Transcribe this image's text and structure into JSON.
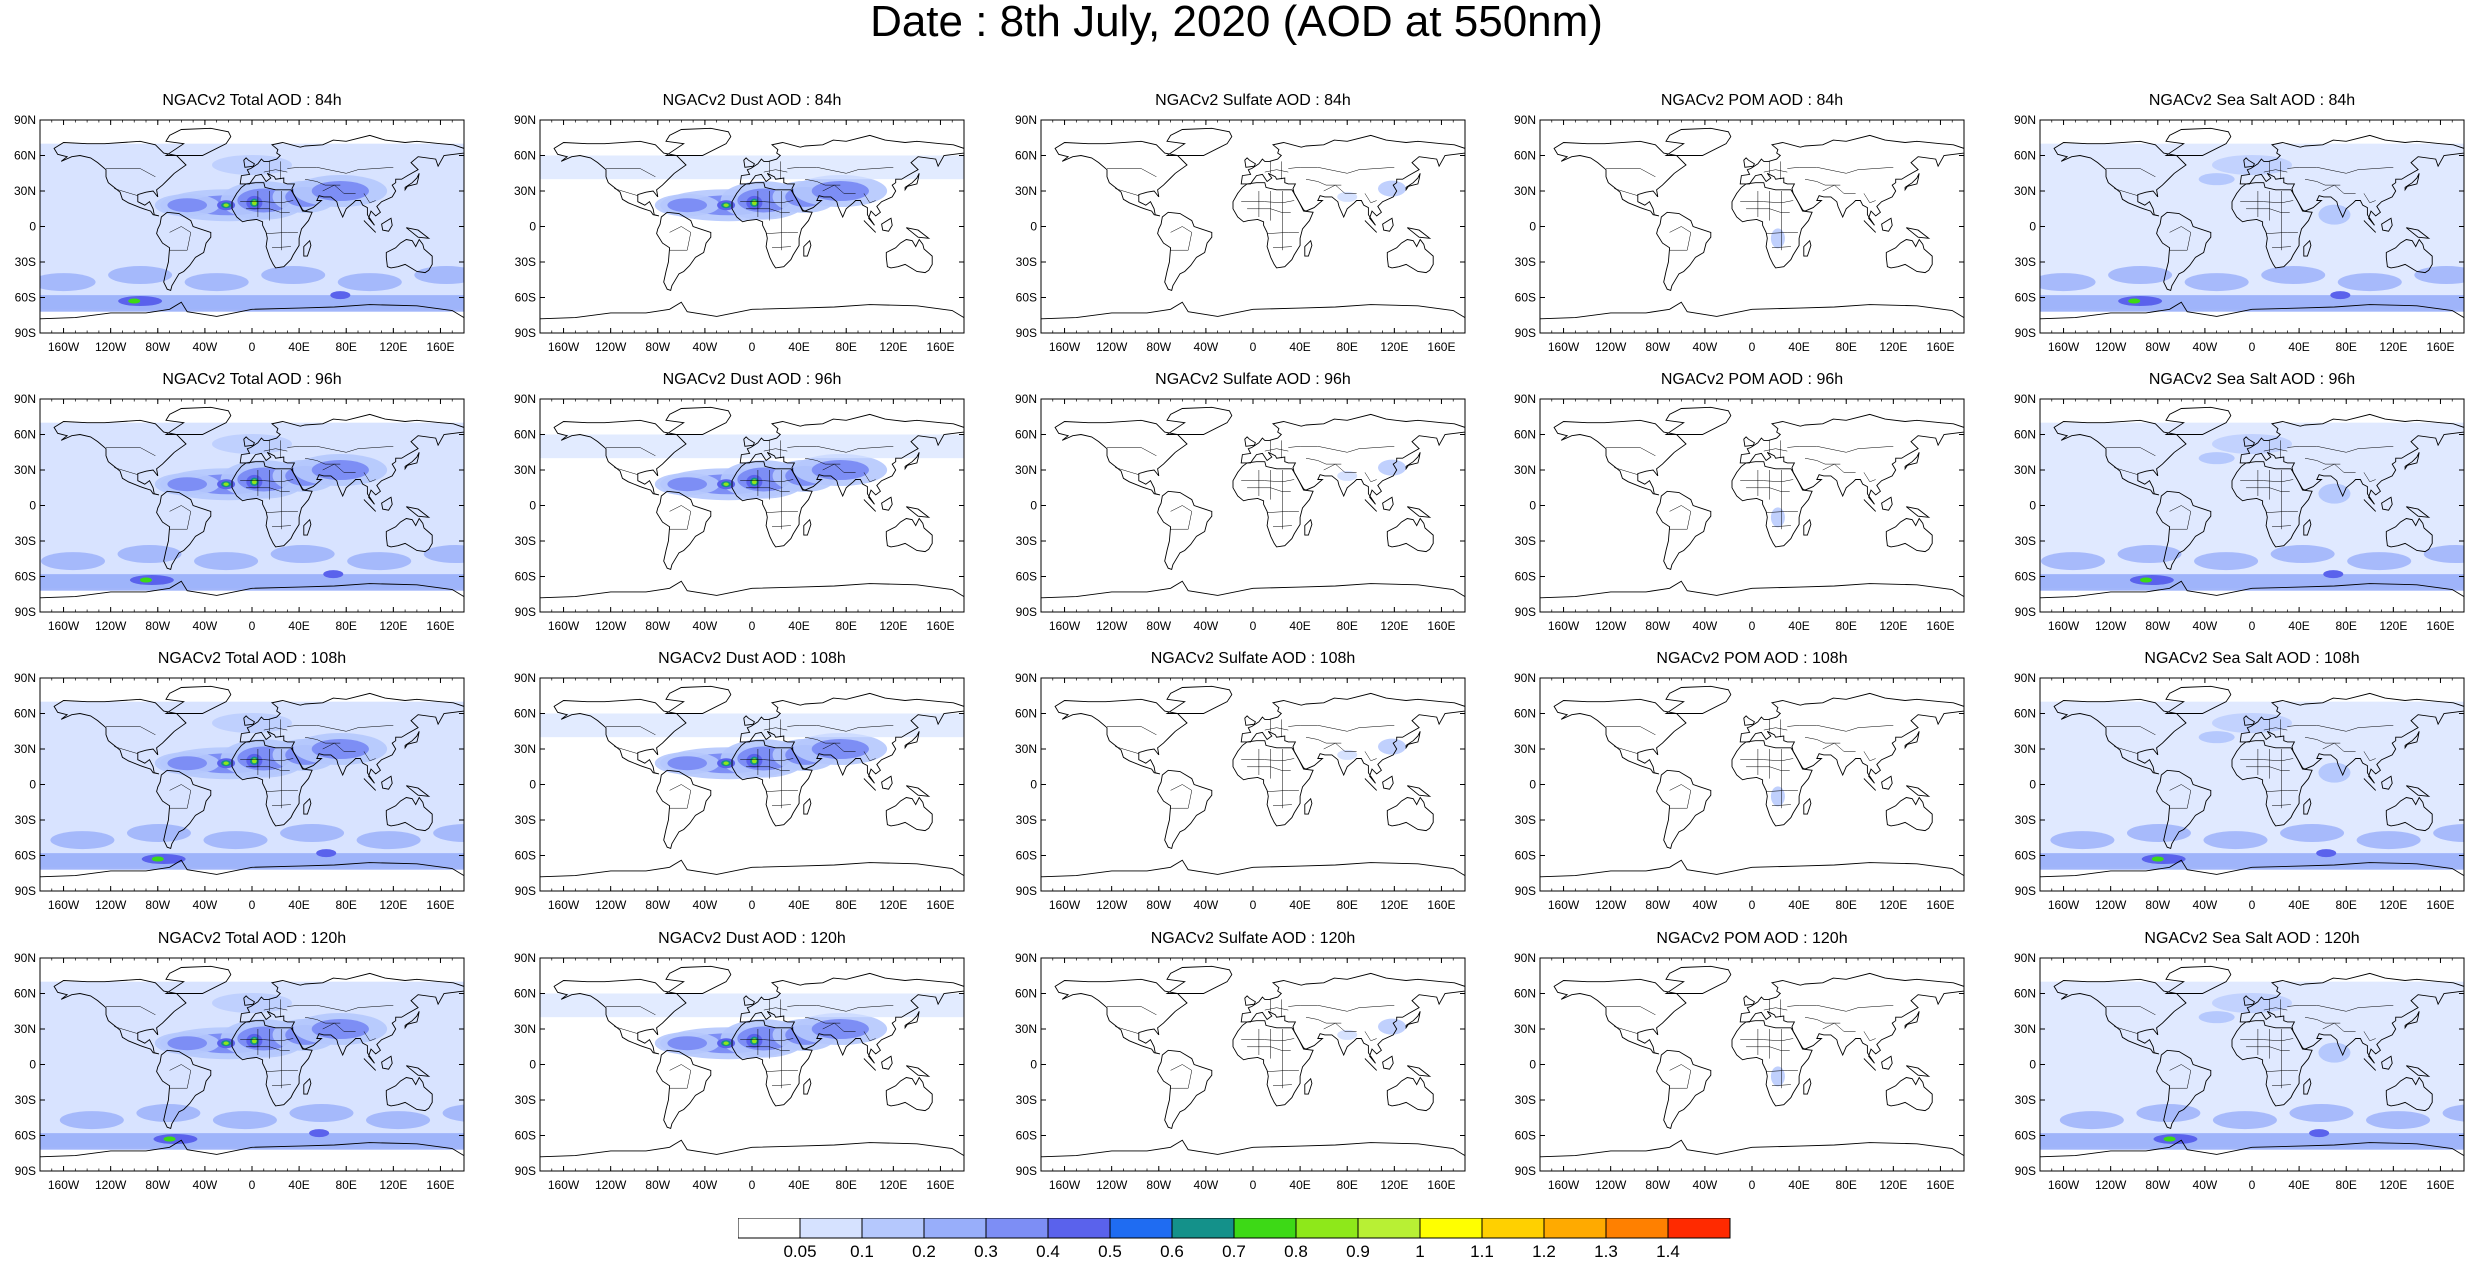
{
  "title": "Date : 8th July, 2020 (AOD at 550nm)",
  "lat_labels": [
    "90N",
    "60N",
    "30N",
    "0",
    "30S",
    "60S",
    "90S"
  ],
  "lon_labels": [
    "160W",
    "120W",
    "80W",
    "40W",
    "0",
    "40E",
    "80E",
    "120E",
    "160E"
  ],
  "panels": [
    [
      "NGACv2 Total AOD : 84h",
      "NGACv2 Dust AOD : 84h",
      "NGACv2 Sulfate AOD : 84h",
      "NGACv2 POM AOD : 84h",
      "NGACv2 Sea Salt AOD : 84h"
    ],
    [
      "NGACv2 Total AOD : 96h",
      "NGACv2 Dust AOD : 96h",
      "NGACv2 Sulfate AOD : 96h",
      "NGACv2 POM AOD : 96h",
      "NGACv2 Sea Salt AOD : 96h"
    ],
    [
      "NGACv2 Total AOD : 108h",
      "NGACv2 Dust AOD : 108h",
      "NGACv2 Sulfate AOD : 108h",
      "NGACv2 POM AOD : 108h",
      "NGACv2 Sea Salt AOD : 108h"
    ],
    [
      "NGACv2 Total AOD : 120h",
      "NGACv2 Dust AOD : 120h",
      "NGACv2 Sulfate AOD : 120h",
      "NGACv2 POM AOD : 120h",
      "NGACv2 Sea Salt  AOD : 120h"
    ]
  ],
  "panel_types": [
    "total",
    "dust",
    "sulfate",
    "pom",
    "seasalt"
  ],
  "colorbar": {
    "labels": [
      "0.05",
      "0.1",
      "0.2",
      "0.3",
      "0.4",
      "0.5",
      "0.6",
      "0.7",
      "0.8",
      "0.9",
      "1",
      "1.1",
      "1.2",
      "1.3",
      "1.4"
    ],
    "colors": [
      "#ffffff",
      "#d6e2ff",
      "#b5c8fd",
      "#98aefa",
      "#7d8ef5",
      "#5a62ec",
      "#1f6cf2",
      "#14918a",
      "#3dd916",
      "#8ee81a",
      "#b8f034",
      "#ffff00",
      "#ffd000",
      "#ffaa00",
      "#ff8000",
      "#ff2a00"
    ]
  }
}
